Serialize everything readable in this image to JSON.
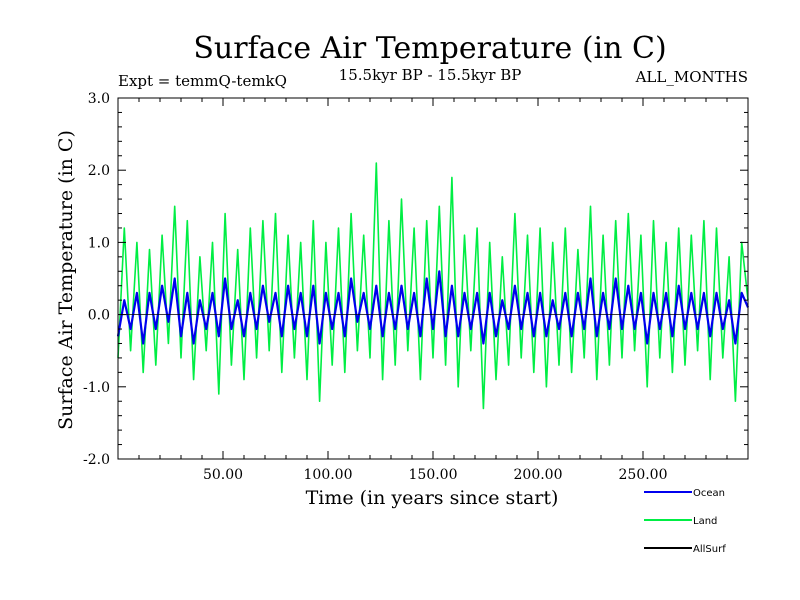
{
  "chart_data": {
    "type": "line",
    "title": "Surface Air Temperature (in C)",
    "expt_label": "Expt = temmQ-temkQ",
    "period_label": "15.5kyr BP - 15.5kyr BP",
    "months_label": "ALL_MONTHS",
    "xlabel": "Time (in years since start)",
    "ylabel": "Surface Air Temperature (in C)",
    "xlim": [
      0,
      300
    ],
    "ylim": [
      -2.0,
      3.0
    ],
    "x_ticks": [
      50,
      100,
      150,
      200,
      250
    ],
    "x_tick_labels": [
      "50.00",
      "100.00",
      "150.00",
      "200.00",
      "250.00"
    ],
    "y_ticks": [
      -2.0,
      -1.0,
      0.0,
      1.0,
      2.0,
      3.0
    ],
    "y_tick_labels": [
      "-2.0",
      "-1.0",
      "0.0",
      "1.0",
      "2.0",
      "3.0"
    ],
    "legend_position": "bottom-right, below plot",
    "series": [
      {
        "name": "Land",
        "color": "#00ee44",
        "x": [
          0,
          3,
          6,
          9,
          12,
          15,
          18,
          21,
          24,
          27,
          30,
          33,
          36,
          39,
          42,
          45,
          48,
          51,
          54,
          57,
          60,
          63,
          66,
          69,
          72,
          75,
          78,
          81,
          84,
          87,
          90,
          93,
          96,
          99,
          102,
          105,
          108,
          111,
          114,
          117,
          120,
          123,
          126,
          129,
          132,
          135,
          138,
          141,
          144,
          147,
          150,
          153,
          156,
          159,
          162,
          165,
          168,
          171,
          174,
          177,
          180,
          183,
          186,
          189,
          192,
          195,
          198,
          201,
          204,
          207,
          210,
          213,
          216,
          219,
          222,
          225,
          228,
          231,
          234,
          237,
          240,
          243,
          246,
          249,
          252,
          255,
          258,
          261,
          264,
          267,
          270,
          273,
          276,
          279,
          282,
          285,
          288,
          291,
          294,
          297,
          300
        ],
        "values": [
          -0.6,
          1.2,
          -0.5,
          1.0,
          -0.8,
          0.9,
          -0.7,
          1.1,
          -0.4,
          1.5,
          -0.6,
          1.3,
          -0.9,
          0.8,
          -0.5,
          1.0,
          -1.1,
          1.4,
          -0.7,
          0.9,
          -0.9,
          1.2,
          -0.6,
          1.3,
          -0.5,
          1.4,
          -0.8,
          1.1,
          -0.6,
          1.0,
          -0.9,
          1.3,
          -1.2,
          1.0,
          -0.7,
          1.2,
          -0.8,
          1.4,
          -0.5,
          1.1,
          -0.6,
          2.1,
          -0.9,
          1.3,
          -0.7,
          1.6,
          -0.5,
          1.2,
          -0.9,
          1.3,
          -0.6,
          1.5,
          -0.7,
          1.9,
          -1.0,
          1.1,
          -0.5,
          1.2,
          -1.3,
          1.0,
          -0.9,
          0.8,
          -0.7,
          1.4,
          -0.6,
          1.1,
          -0.8,
          1.2,
          -1.0,
          1.0,
          -0.7,
          1.2,
          -0.8,
          0.9,
          -0.6,
          1.5,
          -0.9,
          1.1,
          -0.7,
          1.3,
          -0.6,
          1.4,
          -0.5,
          1.1,
          -1.0,
          1.3,
          -0.6,
          1.0,
          -0.8,
          1.2,
          -0.7,
          1.1,
          -0.5,
          1.3,
          -0.9,
          1.2,
          -0.6,
          0.8,
          -1.2,
          1.0,
          0.2
        ]
      },
      {
        "name": "Ocean",
        "color": "#0000ee",
        "x": [
          0,
          3,
          6,
          9,
          12,
          15,
          18,
          21,
          24,
          27,
          30,
          33,
          36,
          39,
          42,
          45,
          48,
          51,
          54,
          57,
          60,
          63,
          66,
          69,
          72,
          75,
          78,
          81,
          84,
          87,
          90,
          93,
          96,
          99,
          102,
          105,
          108,
          111,
          114,
          117,
          120,
          123,
          126,
          129,
          132,
          135,
          138,
          141,
          144,
          147,
          150,
          153,
          156,
          159,
          162,
          165,
          168,
          171,
          174,
          177,
          180,
          183,
          186,
          189,
          192,
          195,
          198,
          201,
          204,
          207,
          210,
          213,
          216,
          219,
          222,
          225,
          228,
          231,
          234,
          237,
          240,
          243,
          246,
          249,
          252,
          255,
          258,
          261,
          264,
          267,
          270,
          273,
          276,
          279,
          282,
          285,
          288,
          291,
          294,
          297,
          300
        ],
        "values": [
          -0.3,
          0.2,
          -0.2,
          0.3,
          -0.4,
          0.3,
          -0.2,
          0.4,
          -0.1,
          0.5,
          -0.3,
          0.3,
          -0.4,
          0.2,
          -0.2,
          0.3,
          -0.3,
          0.5,
          -0.2,
          0.2,
          -0.3,
          0.3,
          -0.2,
          0.4,
          -0.1,
          0.3,
          -0.3,
          0.4,
          -0.2,
          0.3,
          -0.3,
          0.4,
          -0.4,
          0.3,
          -0.2,
          0.3,
          -0.3,
          0.5,
          -0.1,
          0.3,
          -0.2,
          0.4,
          -0.3,
          0.3,
          -0.2,
          0.4,
          -0.2,
          0.3,
          -0.3,
          0.5,
          -0.2,
          0.6,
          -0.3,
          0.4,
          -0.3,
          0.3,
          -0.2,
          0.3,
          -0.4,
          0.3,
          -0.3,
          0.2,
          -0.2,
          0.4,
          -0.2,
          0.3,
          -0.3,
          0.3,
          -0.3,
          0.2,
          -0.2,
          0.3,
          -0.3,
          0.3,
          -0.2,
          0.5,
          -0.3,
          0.3,
          -0.2,
          0.5,
          -0.2,
          0.4,
          -0.2,
          0.3,
          -0.4,
          0.3,
          -0.2,
          0.3,
          -0.3,
          0.4,
          -0.2,
          0.3,
          -0.2,
          0.3,
          -0.3,
          0.3,
          -0.2,
          0.2,
          -0.4,
          0.3,
          0.1
        ]
      },
      {
        "name": "AllSurf",
        "color": "#000000",
        "x": [],
        "values": []
      }
    ]
  }
}
